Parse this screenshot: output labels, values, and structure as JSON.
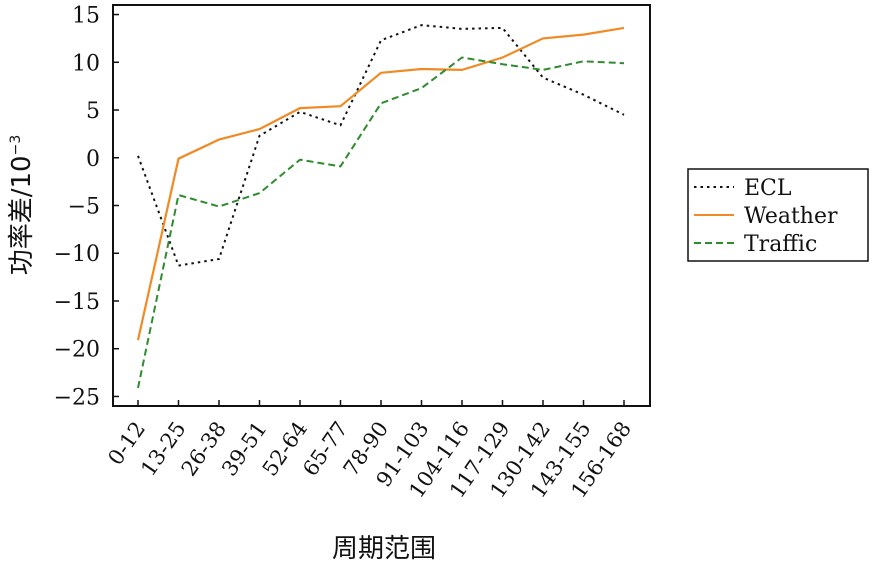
{
  "chart_data": {
    "type": "line",
    "categories": [
      "0-12",
      "13-25",
      "26-38",
      "39-51",
      "52-64",
      "65-77",
      "78-90",
      "91-103",
      "104-116",
      "117-129",
      "130-142",
      "143-155",
      "156-168"
    ],
    "series": [
      {
        "name": "ECL",
        "color": "#111111",
        "dash": "dotted",
        "values": [
          0.2,
          -11.3,
          -10.6,
          2.3,
          4.8,
          3.4,
          12.3,
          13.9,
          13.5,
          13.6,
          8.4,
          6.6,
          4.5
        ]
      },
      {
        "name": "Weather",
        "color": "#f08a24",
        "dash": "solid",
        "values": [
          -19.1,
          -0.1,
          1.9,
          3.0,
          5.2,
          5.4,
          8.9,
          9.3,
          9.2,
          10.5,
          12.5,
          12.9,
          13.6
        ]
      },
      {
        "name": "Traffic",
        "color": "#2e8b2e",
        "dash": "dashed",
        "values": [
          -24.1,
          -3.9,
          -5.1,
          -3.7,
          -0.2,
          -0.9,
          5.7,
          7.3,
          10.5,
          9.8,
          9.2,
          10.1,
          9.9
        ]
      }
    ],
    "ylim": [
      -26,
      16
    ],
    "yticks": [
      -25,
      -20,
      -15,
      -10,
      -5,
      0,
      5,
      10,
      15
    ],
    "ytick_labels": [
      "−25",
      "−20",
      "−15",
      "−10",
      "−5",
      "0",
      "5",
      "10",
      "15"
    ],
    "xlabel": "周期范围",
    "ylabel": "功率差/10",
    "ylabel_exponent": "−3",
    "legend_position": "right",
    "grid": false
  }
}
